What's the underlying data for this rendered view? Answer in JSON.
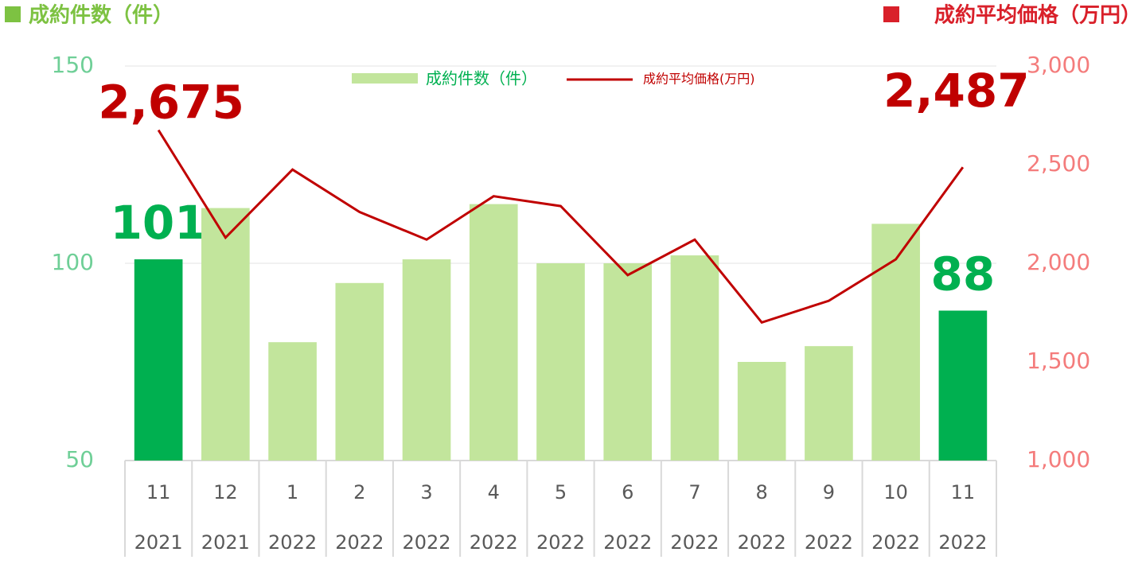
{
  "chart_data": {
    "type": "combo",
    "y_label": "成約件数（件）",
    "y2_label": "成約平均価格（万円）",
    "categories": [
      "11",
      "12",
      "1",
      "2",
      "3",
      "4",
      "5",
      "6",
      "7",
      "8",
      "9",
      "10",
      "11"
    ],
    "category_years": [
      "2021",
      "2021",
      "2022",
      "2022",
      "2022",
      "2022",
      "2022",
      "2022",
      "2022",
      "2022",
      "2022",
      "2022",
      "2022"
    ],
    "series": [
      {
        "name": "成約件数（件）",
        "type": "bar",
        "color": "#c2e59c",
        "colors": [
          "#00b050",
          "#c2e59c",
          "#c2e59c",
          "#c2e59c",
          "#c2e59c",
          "#c2e59c",
          "#c2e59c",
          "#c2e59c",
          "#c2e59c",
          "#c2e59c",
          "#c2e59c",
          "#c2e59c",
          "#00b050"
        ],
        "values": [
          101,
          114,
          80,
          95,
          101,
          115,
          100,
          100,
          102,
          75,
          79,
          110,
          88
        ],
        "value_labels": [
          "101",
          null,
          null,
          null,
          null,
          null,
          null,
          null,
          null,
          null,
          null,
          null,
          "88"
        ]
      },
      {
        "name": "成約平均価格(万円)",
        "type": "line",
        "axis": "y2",
        "color": "#c00000",
        "values": [
          2675,
          2130,
          2475,
          2260,
          2120,
          2340,
          2290,
          1940,
          2120,
          1700,
          1810,
          2020,
          2487
        ],
        "value_labels": [
          "2,675",
          null,
          null,
          null,
          null,
          null,
          null,
          null,
          null,
          null,
          null,
          null,
          "2,487"
        ]
      }
    ],
    "ylim": [
      50,
      150
    ],
    "yticks": [
      50,
      100,
      150
    ],
    "y2lim": [
      1000,
      3000
    ],
    "y2ticks": [
      {
        "value": 1000,
        "label": "1,000"
      },
      {
        "value": 1500,
        "label": "1,500"
      },
      {
        "value": 2000,
        "label": "2,000"
      },
      {
        "value": 2500,
        "label": "2,500"
      },
      {
        "value": 3000,
        "label": "3,000"
      }
    ],
    "grid": true,
    "legend": "top"
  }
}
